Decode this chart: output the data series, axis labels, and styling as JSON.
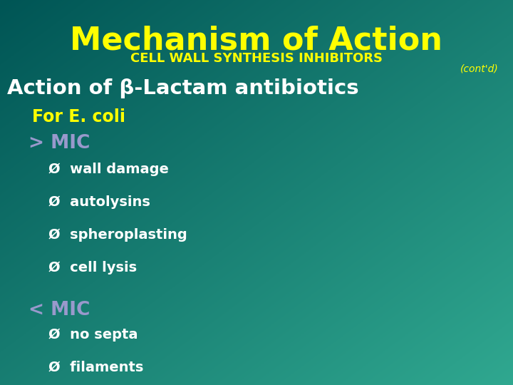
{
  "title": "Mechanism of Action",
  "subtitle": "CELL WALL SYNTHESIS INHIBITORS",
  "contd": "(cont'd)",
  "line1": "Action of β-Lactam antibiotics",
  "line2": "For E. coli",
  "line3_gt": "> MIC",
  "bullet_gt": [
    "Ø  wall damage",
    "Ø  autolysins",
    "Ø  spheroplasting",
    "Ø  cell lysis"
  ],
  "line3_lt": "< MIC",
  "bullet_lt": [
    "Ø  no septa",
    "Ø  filaments"
  ],
  "bg_color_top_left": "#005555",
  "bg_color_bottom_right": "#30a890",
  "title_color": "#ffff00",
  "subtitle_color": "#ffff00",
  "contd_color": "#ffff00",
  "line1_color": "#ffffff",
  "line2_color": "#ffff00",
  "mic_color": "#9999cc",
  "bullet_color": "#ffffff",
  "title_fontsize": 32,
  "subtitle_fontsize": 13,
  "contd_fontsize": 10,
  "line1_fontsize": 21,
  "line2_fontsize": 17,
  "mic_fontsize": 19,
  "bullet_fontsize": 14
}
